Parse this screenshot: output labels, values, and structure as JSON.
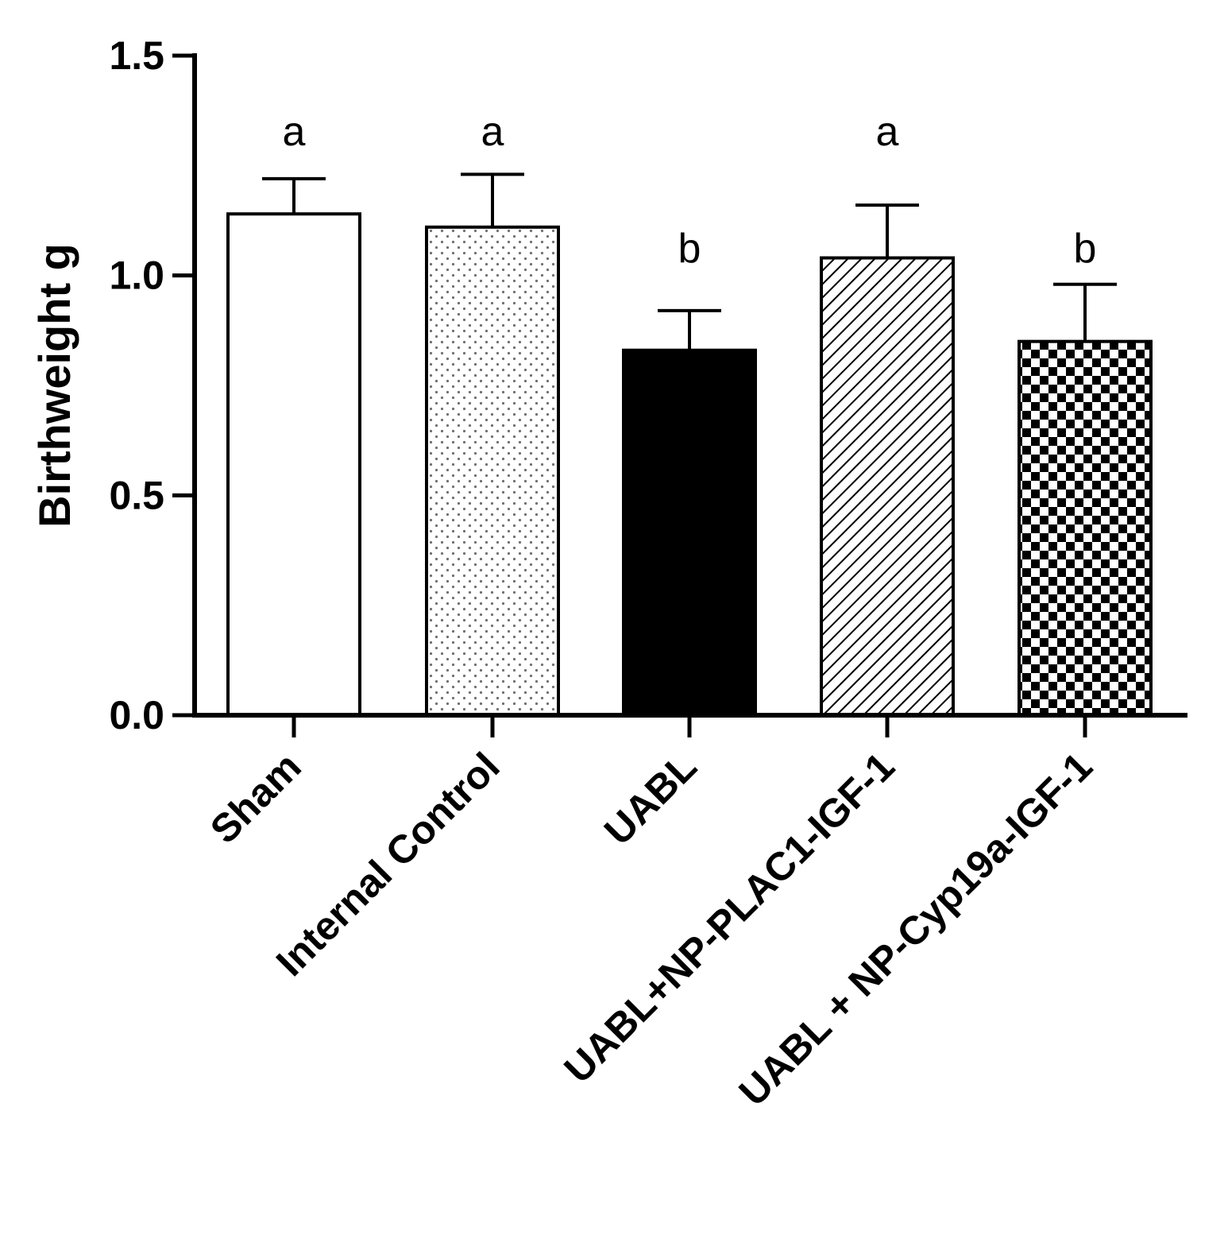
{
  "chart_data": {
    "type": "bar",
    "categories": [
      "Sham",
      "Internal Control",
      "UABL",
      "UABL+NP-PLAC1-IGF-1",
      "UABL + NP-Cyp19a-IGF-1"
    ],
    "values": [
      1.14,
      1.11,
      0.83,
      1.04,
      0.85
    ],
    "errors": [
      0.08,
      0.12,
      0.09,
      0.12,
      0.13
    ],
    "significance": [
      "a",
      "a",
      "b",
      "a",
      "b"
    ],
    "fill_patterns": [
      "solid-white",
      "dots",
      "solid-black",
      "diagonal-hatch",
      "checkerboard"
    ],
    "title": "",
    "xlabel": "",
    "ylabel": "Birthweight g",
    "ylim": [
      0,
      1.5
    ],
    "yticks": [
      "0.0",
      "0.5",
      "1.0",
      "1.5"
    ],
    "grid": false,
    "legend": "none"
  }
}
